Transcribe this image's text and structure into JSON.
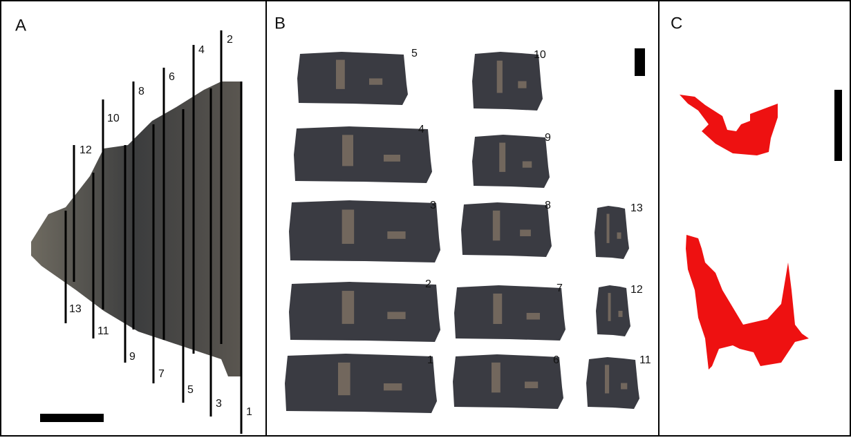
{
  "panels": [
    {
      "label": "A",
      "slices": [
        "1",
        "2",
        "3",
        "4",
        "5",
        "6",
        "7",
        "8",
        "9",
        "10",
        "11",
        "12",
        "13"
      ]
    },
    {
      "label": "B",
      "slices": [
        "1",
        "2",
        "3",
        "4",
        "5",
        "6",
        "7",
        "8",
        "9",
        "10",
        "11",
        "12",
        "13"
      ]
    },
    {
      "label": "C"
    }
  ]
}
